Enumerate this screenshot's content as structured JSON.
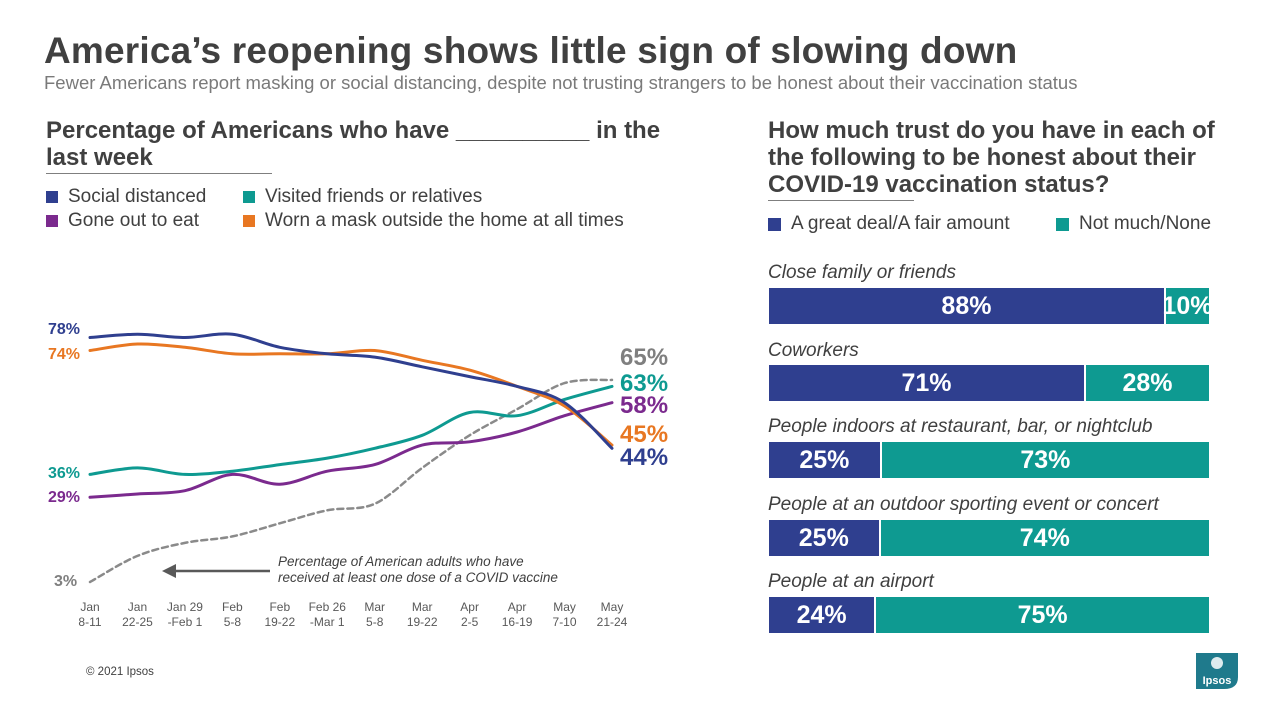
{
  "header": {
    "title": "America’s reopening shows little sign of slowing down",
    "subtitle": "Fewer Americans report masking or social distancing, despite not trusting strangers to be honest about their vaccination status"
  },
  "left": {
    "heading": "Percentage of Americans who have __________ in the last week",
    "legend": [
      {
        "label": "Social distanced",
        "color": "#2f3f8f"
      },
      {
        "label": "Visited friends or relatives",
        "color": "#0e9a91"
      },
      {
        "label": "Gone out to eat",
        "color": "#7b2a8e"
      },
      {
        "label": "Worn a mask outside the home at all times",
        "color": "#e87722"
      }
    ],
    "annotation": [
      "Percentage of American adults who  have",
      "received at least one dose of a COVID vaccine"
    ]
  },
  "right": {
    "heading": "How much trust do you have in each of the following to be honest about their COVID-19 vaccination status?",
    "legend": {
      "trust": "A great deal/A fair amount",
      "notrust": "Not much/None"
    },
    "colors": {
      "trust": "#2f3f8f",
      "notrust": "#0e9a91"
    },
    "rows": [
      {
        "label": "Close family or friends",
        "trust": 88,
        "notrust": 10,
        "trust_text": "88%",
        "notrust_text": "10%"
      },
      {
        "label": "Coworkers",
        "trust": 71,
        "notrust": 28,
        "trust_text": "71%",
        "notrust_text": "28%"
      },
      {
        "label": "People indoors at restaurant, bar, or nightclub",
        "trust": 25,
        "notrust": 73,
        "trust_text": "25%",
        "notrust_text": "73%"
      },
      {
        "label": "People at an outdoor sporting event or concert",
        "trust": 25,
        "notrust": 74,
        "trust_text": "25%",
        "notrust_text": "74%"
      },
      {
        "label": "People at an airport",
        "trust": 24,
        "notrust": 75,
        "trust_text": "24%",
        "notrust_text": "75%"
      }
    ]
  },
  "footer": {
    "copyright": "© 2021 Ipsos",
    "logo_text": "Ipsos"
  },
  "chart_data": [
    {
      "type": "line",
      "title": "Percentage of Americans who have __________ in the last week",
      "categories": [
        [
          "Jan",
          "8-11"
        ],
        [
          "Jan",
          "22-25"
        ],
        [
          "Jan 29",
          "-Feb 1"
        ],
        [
          "Feb",
          "5-8"
        ],
        [
          "Feb",
          "19-22"
        ],
        [
          "Feb 26",
          "-Mar 1"
        ],
        [
          "Mar",
          "5-8"
        ],
        [
          "Mar",
          "19-22"
        ],
        [
          "Apr",
          "2-5"
        ],
        [
          "Apr",
          "16-19"
        ],
        [
          "May",
          "7-10"
        ],
        [
          "May",
          "21-24"
        ]
      ],
      "ylim": [
        0,
        100
      ],
      "series": [
        {
          "name": "Social distanced",
          "color": "#2f3f8f",
          "values": [
            78,
            79,
            78,
            79,
            75,
            73,
            72,
            69,
            66,
            63,
            58,
            44
          ],
          "start_label": "78%",
          "end_label": "44%"
        },
        {
          "name": "Worn a mask outside the home at all times",
          "color": "#e87722",
          "values": [
            74,
            76,
            75,
            73,
            73,
            73,
            74,
            71,
            68,
            63,
            57,
            45
          ],
          "start_label": "74%",
          "end_label": "45%"
        },
        {
          "name": "Visited friends or relatives",
          "color": "#0e9a91",
          "values": [
            36,
            38,
            36,
            37,
            39,
            41,
            44,
            48,
            55,
            54,
            59,
            63
          ],
          "start_label": "36%",
          "end_label": "63%"
        },
        {
          "name": "Gone out to eat",
          "color": "#7b2a8e",
          "values": [
            29,
            30,
            31,
            36,
            33,
            37,
            39,
            45,
            46,
            49,
            54,
            58
          ],
          "start_label": "29%",
          "end_label": "58%"
        },
        {
          "name": "Percentage of American adults who have received at least one dose of a COVID vaccine",
          "color": "#8a8a8a",
          "dashed": true,
          "values": [
            3,
            11,
            15,
            17,
            21,
            25,
            27,
            38,
            48,
            56,
            64,
            65
          ],
          "start_label": "3%",
          "end_label": "65%"
        }
      ]
    },
    {
      "type": "bar",
      "orientation": "horizontal-stacked",
      "title": "How much trust do you have in each of the following to be honest about their COVID-19 vaccination status?",
      "categories": [
        "Close family or friends",
        "Coworkers",
        "People indoors at restaurant, bar, or nightclub",
        "People at an outdoor sporting event or concert",
        "People at an airport"
      ],
      "series": [
        {
          "name": "A great deal/A fair amount",
          "values": [
            88,
            71,
            25,
            25,
            24
          ]
        },
        {
          "name": "Not much/None",
          "values": [
            10,
            28,
            73,
            74,
            75
          ]
        }
      ]
    }
  ]
}
